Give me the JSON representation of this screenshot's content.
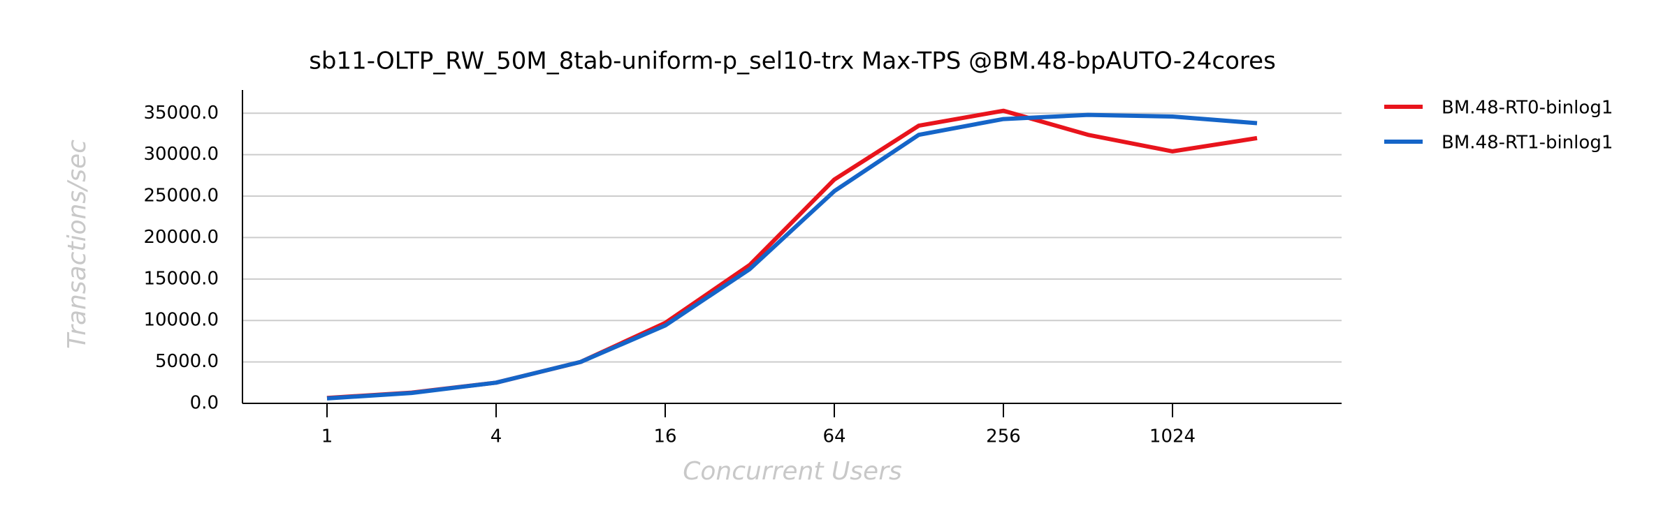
{
  "chart_data": {
    "type": "line",
    "title": "sb11-OLTP_RW_50M_8tab-uniform-p_sel10-trx Max-TPS @BM.48-bpAUTO-24cores",
    "x_label": "Concurrent Users",
    "y_label": "Transactions/sec",
    "x": [
      1,
      2,
      4,
      8,
      16,
      32,
      64,
      128,
      256,
      512,
      1024,
      2048
    ],
    "x_scale": "log2",
    "xlim": [
      0.5,
      4096
    ],
    "xticks": [
      1,
      4,
      16,
      64,
      256,
      1024
    ],
    "ylim": [
      0,
      37800
    ],
    "yticks": [
      {
        "value": 0,
        "label": "0.0"
      },
      {
        "value": 5000,
        "label": "5000.0"
      },
      {
        "value": 10000,
        "label": "10000.0"
      },
      {
        "value": 15000,
        "label": "15000.0"
      },
      {
        "value": 20000,
        "label": "20000.0"
      },
      {
        "value": 25000,
        "label": "25000.0"
      },
      {
        "value": 30000,
        "label": "30000.0"
      },
      {
        "value": 35000,
        "label": "35000.0"
      }
    ],
    "grid": true,
    "legend": "right",
    "series": [
      {
        "name": "BM.48-RT0-binlog1",
        "color": "#e8141c",
        "values": [
          650,
          1300,
          2500,
          5000,
          9700,
          16700,
          27000,
          33500,
          35300,
          32400,
          30400,
          32000
        ]
      },
      {
        "name": "BM.48-RT1-binlog1",
        "color": "#1565c8",
        "values": [
          600,
          1250,
          2500,
          5000,
          9400,
          16200,
          25600,
          32400,
          34300,
          34800,
          34600,
          33800
        ]
      }
    ]
  }
}
